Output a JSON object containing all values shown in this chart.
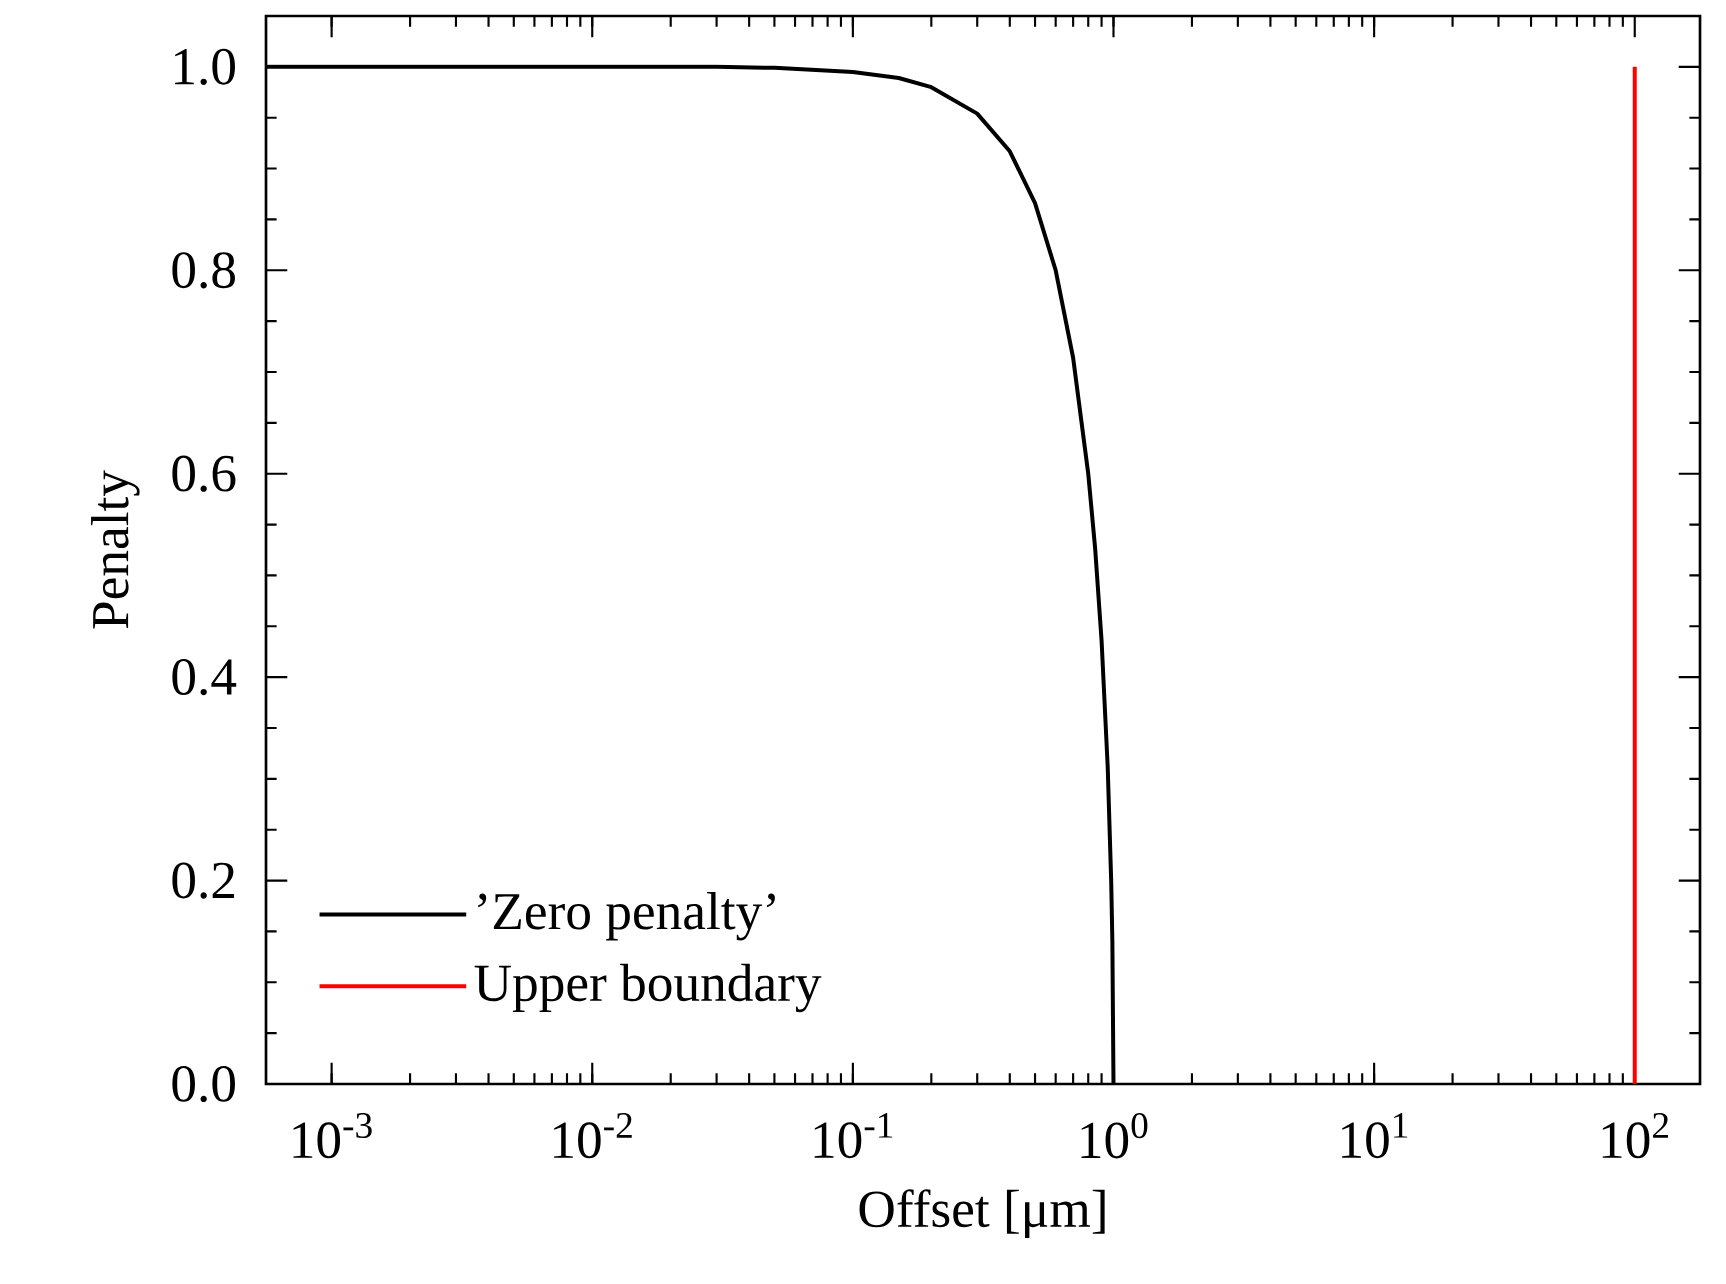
{
  "chart_data": {
    "type": "line",
    "xlabel": "Offset [μm]",
    "ylabel": "Penalty",
    "log": "x",
    "xlim": [
      0.00056,
      178
    ],
    "ylim": [
      0,
      1.05
    ],
    "xticks": [
      {
        "value": 0.001,
        "label": "10$^{-3}$"
      },
      {
        "value": 0.01,
        "label": "10$^{-2}$"
      },
      {
        "value": 0.1,
        "label": "10$^{-1}$"
      },
      {
        "value": 1,
        "label": "10$^{0}$"
      },
      {
        "value": 10,
        "label": "10$^{1}$"
      },
      {
        "value": 100,
        "label": "10$^{2}$"
      }
    ],
    "yticks": [
      {
        "value": 0,
        "label": "0.0"
      },
      {
        "value": 0.2,
        "label": "0.2"
      },
      {
        "value": 0.4,
        "label": "0.4"
      },
      {
        "value": 0.6,
        "label": "0.6"
      },
      {
        "value": 0.8,
        "label": "0.8"
      },
      {
        "value": 1,
        "label": "1.0"
      }
    ],
    "legend": "bottom left",
    "grid": false,
    "series": [
      {
        "name": "’Zero penalty’",
        "color": "#000000",
        "x": [
          0.00056,
          0.001,
          0.01,
          0.03,
          0.05,
          0.1,
          0.15,
          0.2,
          0.3,
          0.4,
          0.5,
          0.6,
          0.7,
          0.8,
          0.85,
          0.9,
          0.95,
          0.98,
          0.99,
          1
        ],
        "values": [
          1,
          1,
          1,
          1,
          0.999,
          0.995,
          0.989,
          0.98,
          0.954,
          0.917,
          0.866,
          0.8,
          0.714,
          0.6,
          0.527,
          0.436,
          0.312,
          0.199,
          0.141,
          0
        ]
      },
      {
        "name": "Upper boundary",
        "color": "#ff0000",
        "x": [
          100,
          100
        ],
        "values": [
          0,
          1
        ]
      }
    ]
  }
}
